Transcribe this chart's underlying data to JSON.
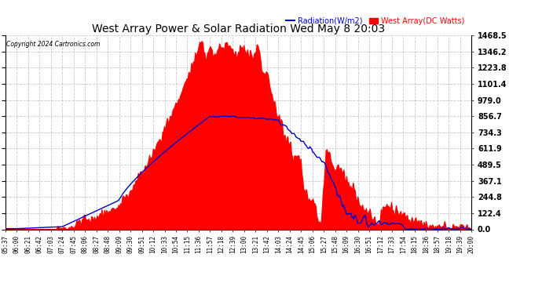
{
  "title": "West Array Power & Solar Radiation Wed May 8 20:03",
  "copyright": "Copyright 2024 Cartronics.com",
  "legend_radiation": "Radiation(W/m2)",
  "legend_west": "West Array(DC Watts)",
  "ylabel_right_ticks": [
    0.0,
    122.4,
    244.8,
    367.1,
    489.5,
    611.9,
    734.3,
    856.7,
    979.0,
    1101.4,
    1223.8,
    1346.2,
    1468.5
  ],
  "y_max": 1468.5,
  "background_color": "#ffffff",
  "plot_bg_color": "#ffffff",
  "grid_color": "#bbbbbb",
  "radiation_fill_color": "#ff0000",
  "west_line_color": "#0000cc",
  "title_color": "#000000",
  "copyright_color": "#000000",
  "xtick_labels": [
    "05:37",
    "06:00",
    "06:21",
    "06:42",
    "07:03",
    "07:24",
    "07:45",
    "08:06",
    "08:27",
    "08:48",
    "09:09",
    "09:30",
    "09:51",
    "10:12",
    "10:33",
    "10:54",
    "11:15",
    "11:36",
    "11:57",
    "12:18",
    "12:39",
    "13:00",
    "13:21",
    "13:42",
    "14:03",
    "14:24",
    "14:45",
    "15:06",
    "15:27",
    "15:48",
    "16:09",
    "16:30",
    "16:51",
    "17:12",
    "17:33",
    "17:54",
    "18:15",
    "18:36",
    "18:57",
    "19:18",
    "19:39",
    "20:00"
  ],
  "n_xticks": 42
}
